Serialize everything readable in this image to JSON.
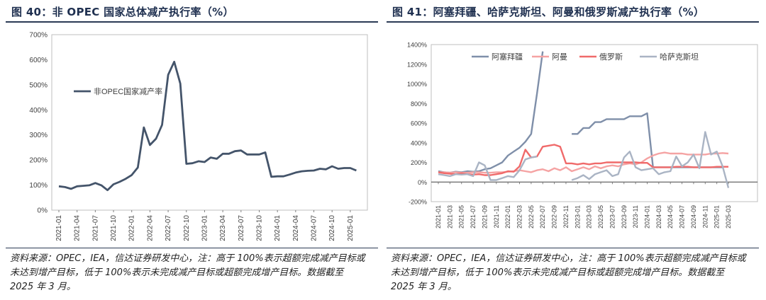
{
  "left": {
    "title": "图 40：非 OPEC 国家总体减产执行率（%）",
    "source": "资料来源：OPEC，IEA，信达证券研发中心，注：高于 100%表示超额完成减产目标或未达到增产目标，低于 100%表示未完成减产目标或超额完成增产目标。数据截至 2025 年 3 月。",
    "chart_data": {
      "type": "line",
      "title": "",
      "xlabel": "",
      "ylabel": "",
      "ylim": [
        0,
        700
      ],
      "yticks": [
        "0%",
        "100%",
        "200%",
        "300%",
        "400%",
        "500%",
        "600%",
        "700%"
      ],
      "xtick_labels": [
        "2021-01",
        "2021-04",
        "2021-07",
        "2021-10",
        "2022-01",
        "2022-04",
        "2022-07",
        "2022-10",
        "2023-01",
        "2023-04",
        "2023-07",
        "2023-10",
        "2024-01",
        "2024-04",
        "2024-07",
        "2024-10",
        "2025-01"
      ],
      "x": [
        "2021-01",
        "2021-02",
        "2021-03",
        "2021-04",
        "2021-05",
        "2021-06",
        "2021-07",
        "2021-08",
        "2021-09",
        "2021-10",
        "2021-11",
        "2021-12",
        "2022-01",
        "2022-02",
        "2022-03",
        "2022-04",
        "2022-05",
        "2022-06",
        "2022-07",
        "2022-08",
        "2022-09",
        "2022-10",
        "2022-11",
        "2022-12",
        "2023-01",
        "2023-02",
        "2023-03",
        "2023-04",
        "2023-05",
        "2023-06",
        "2023-07",
        "2023-08",
        "2023-09",
        "2023-10",
        "2023-11",
        "2023-12",
        "2024-01",
        "2024-02",
        "2024-03",
        "2024-04",
        "2024-05",
        "2024-06",
        "2024-07",
        "2024-08",
        "2024-09",
        "2024-10",
        "2024-11",
        "2024-12",
        "2025-01",
        "2025-02",
        "2025-03"
      ],
      "grid": false,
      "legend": "top-left",
      "series": [
        {
          "name": "非OPEC国家减产率",
          "color": "#44546a",
          "values": [
            95,
            92,
            85,
            95,
            97,
            99,
            108,
            99,
            80,
            103,
            113,
            125,
            140,
            170,
            330,
            260,
            285,
            340,
            540,
            592,
            505,
            185,
            187,
            195,
            192,
            210,
            205,
            225,
            225,
            235,
            238,
            222,
            222,
            222,
            230,
            133,
            135,
            135,
            142,
            150,
            155,
            157,
            158,
            165,
            163,
            175,
            165,
            168,
            168,
            158,
            null
          ]
        }
      ]
    }
  },
  "right": {
    "title": "图 41：阿塞拜疆、哈萨克斯坦、阿曼和俄罗斯减产执行率（%）",
    "source": "资料来源：OPEC，IEA，信达证券研发中心，注：高于 100%表示超额完成减产目标或未达到增产目标，低于 100%表示未完成减产目标或超额完成增产目标。数据截至 2025 年 3 月。",
    "chart_data": {
      "type": "line",
      "title": "",
      "xlabel": "",
      "ylabel": "",
      "ylim": [
        -200,
        1400
      ],
      "yticks": [
        "-200%",
        "0%",
        "200%",
        "400%",
        "600%",
        "800%",
        "1000%",
        "1200%",
        "1400%"
      ],
      "xtick_labels": [
        "2021-01",
        "2021-03",
        "2021-05",
        "2021-07",
        "2021-09",
        "2021-11",
        "2022-01",
        "2022-03",
        "2022-05",
        "2022-07",
        "2022-09",
        "2022-11",
        "2023-01",
        "2023-03",
        "2023-05",
        "2023-07",
        "2023-09",
        "2023-11",
        "2024-01",
        "2024-03",
        "2024-05",
        "2024-07",
        "2024-09",
        "2024-11",
        "2025-01",
        "2025-03"
      ],
      "x": [
        "2021-01",
        "2021-02",
        "2021-03",
        "2021-04",
        "2021-05",
        "2021-06",
        "2021-07",
        "2021-08",
        "2021-09",
        "2021-10",
        "2021-11",
        "2021-12",
        "2022-01",
        "2022-02",
        "2022-03",
        "2022-04",
        "2022-05",
        "2022-06",
        "2022-07",
        "2022-08",
        "2022-09",
        "2022-10",
        "2022-11",
        "2022-12",
        "2023-01",
        "2023-02",
        "2023-03",
        "2023-04",
        "2023-05",
        "2023-06",
        "2023-07",
        "2023-08",
        "2023-09",
        "2023-10",
        "2023-11",
        "2023-12",
        "2024-01",
        "2024-02",
        "2024-03",
        "2024-04",
        "2024-05",
        "2024-06",
        "2024-07",
        "2024-08",
        "2024-09",
        "2024-10",
        "2024-11",
        "2024-12",
        "2025-01",
        "2025-02",
        "2025-03"
      ],
      "grid": false,
      "legend": "top",
      "series": [
        {
          "name": "阿塞拜疆",
          "color": "#7f8fa9",
          "values": [
            110,
            100,
            95,
            105,
            100,
            110,
            105,
            110,
            130,
            140,
            170,
            200,
            270,
            310,
            350,
            410,
            490,
            900,
            1330,
            null,
            null,
            null,
            null,
            490,
            490,
            550,
            550,
            610,
            610,
            640,
            640,
            640,
            640,
            670,
            670,
            670,
            700,
            150,
            150,
            150,
            150,
            150,
            150,
            150,
            150,
            150,
            150,
            150,
            150,
            150,
            null
          ]
        },
        {
          "name": "阿曼",
          "color": "#f5a3a3",
          "values": [
            100,
            100,
            95,
            100,
            95,
            95,
            100,
            100,
            95,
            95,
            100,
            100,
            105,
            110,
            120,
            110,
            100,
            120,
            130,
            110,
            140,
            120,
            150,
            110,
            130,
            150,
            130,
            160,
            140,
            160,
            170,
            160,
            180,
            190,
            180,
            200,
            240,
            270,
            290,
            300,
            290,
            290,
            290,
            280,
            280,
            280,
            280,
            290,
            290,
            295,
            290
          ]
        },
        {
          "name": "俄罗斯",
          "color": "#f06a6a",
          "values": [
            100,
            90,
            85,
            80,
            90,
            80,
            75,
            80,
            70,
            70,
            80,
            90,
            110,
            105,
            160,
            330,
            250,
            260,
            360,
            370,
            380,
            360,
            190,
            190,
            180,
            190,
            180,
            190,
            190,
            200,
            200,
            200,
            200,
            200,
            200,
            195,
            195,
            150,
            150,
            150,
            150,
            155,
            155,
            155,
            150,
            150,
            150,
            150,
            155,
            155,
            155
          ]
        },
        {
          "name": "哈萨克斯坦",
          "color": "#aab4c4",
          "values": [
            80,
            70,
            60,
            80,
            75,
            80,
            60,
            200,
            170,
            20,
            20,
            40,
            60,
            50,
            120,
            230,
            250,
            260,
            null,
            null,
            null,
            null,
            null,
            20,
            40,
            70,
            30,
            80,
            100,
            120,
            60,
            80,
            250,
            310,
            150,
            120,
            130,
            140,
            80,
            100,
            110,
            260,
            160,
            200,
            280,
            140,
            510,
            280,
            310,
            160,
            -60
          ]
        }
      ]
    }
  }
}
